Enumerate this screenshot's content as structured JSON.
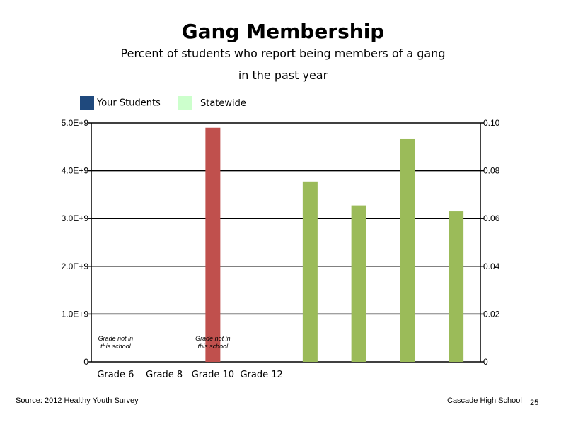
{
  "slide": {
    "title": "Gang Membership",
    "subtitle_line1": "Percent of students who report being members of a gang",
    "subtitle_line2": "in the past year",
    "source": "Source: 2012 Healthy Youth Survey",
    "school": "Cascade High School",
    "page_number": "25"
  },
  "legend": [
    {
      "label": "Your Students",
      "color": "#1f497d"
    },
    {
      "label": "Statewide",
      "color": "#ccffcc"
    }
  ],
  "colors": {
    "bar_red": "#c0504d",
    "bar_green": "#9bbb59",
    "grid": "#000000"
  },
  "chart_data": {
    "type": "bar",
    "categories": [
      "Grade 6",
      "Grade 8",
      "Grade 10",
      "Grade 12"
    ],
    "left_axis": {
      "ticks": [
        "0",
        "1.0E+9",
        "2.0E+9",
        "3.0E+9",
        "4.0E+9",
        "5.0E+9"
      ],
      "ylim": [
        0,
        5000000000
      ]
    },
    "right_axis": {
      "ticks": [
        "0",
        "0.02",
        "0.04",
        "0.06",
        "0.08",
        "0.10"
      ],
      "ylim": [
        0,
        0.1
      ]
    },
    "left_axis_bars": [
      {
        "slot": 2,
        "value": 4900000000,
        "color": "#c0504d"
      }
    ],
    "right_axis_bars": [
      {
        "slot": 4,
        "value": 0.0755,
        "color": "#9bbb59"
      },
      {
        "slot": 5,
        "value": 0.0655,
        "color": "#9bbb59"
      },
      {
        "slot": 6,
        "value": 0.0935,
        "color": "#9bbb59"
      },
      {
        "slot": 7,
        "value": 0.063,
        "color": "#9bbb59"
      }
    ],
    "annotations": [
      {
        "slot": 0,
        "lines": [
          "Grade not in",
          "this school"
        ]
      },
      {
        "slot": 2,
        "lines": [
          "Grade not in",
          "this school"
        ]
      }
    ]
  }
}
